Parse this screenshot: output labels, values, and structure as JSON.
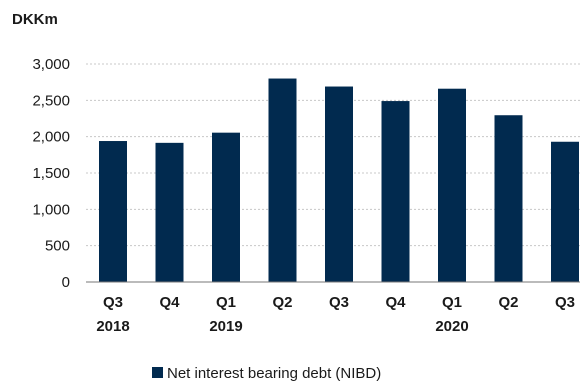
{
  "chart_data": {
    "type": "bar",
    "unit_label": "DKKm",
    "categories": [
      {
        "quarter": "Q3",
        "year": "2018"
      },
      {
        "quarter": "Q4",
        "year": ""
      },
      {
        "quarter": "Q1",
        "year": "2019"
      },
      {
        "quarter": "Q2",
        "year": ""
      },
      {
        "quarter": "Q3",
        "year": ""
      },
      {
        "quarter": "Q4",
        "year": ""
      },
      {
        "quarter": "Q1",
        "year": "2020"
      },
      {
        "quarter": "Q2",
        "year": ""
      },
      {
        "quarter": "Q3",
        "year": ""
      }
    ],
    "series": [
      {
        "name": "Net interest bearing debt (NIBD)",
        "color": "#012a4f",
        "values": [
          1940,
          1915,
          2055,
          2800,
          2690,
          2490,
          2660,
          2295,
          1930
        ]
      }
    ],
    "ylim": [
      0,
      3000
    ],
    "yticks": [
      {
        "value": 0,
        "label": "0"
      },
      {
        "value": 500,
        "label": "500"
      },
      {
        "value": 1000,
        "label": "1,000"
      },
      {
        "value": 1500,
        "label": "1,500"
      },
      {
        "value": 2000,
        "label": "2,000"
      },
      {
        "value": 2500,
        "label": "2,500"
      },
      {
        "value": 3000,
        "label": "3,000"
      }
    ],
    "grid": true,
    "legend_position": "bottom"
  }
}
